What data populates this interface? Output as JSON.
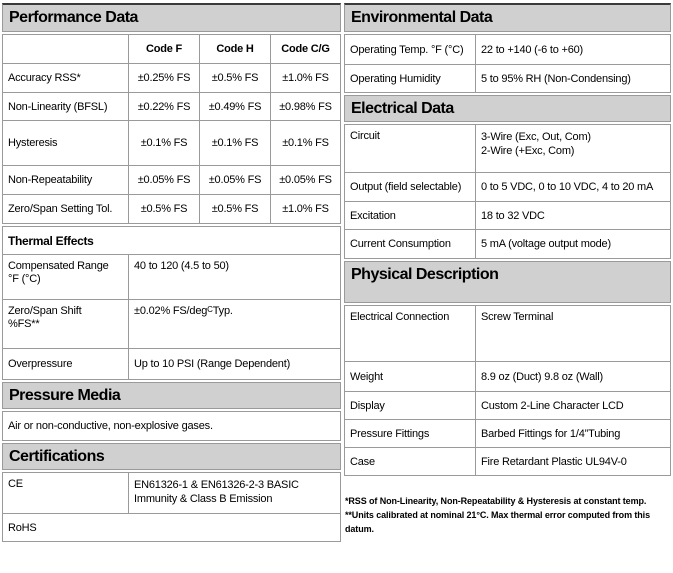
{
  "colors": {
    "header_bg": "#d0d0d0",
    "border": "#9a9a9a",
    "top_rule": "#3a3a3a",
    "text": "#000000"
  },
  "performance": {
    "title": "Performance Data",
    "col_headers": [
      "Code F",
      "Code H",
      "Code C/G"
    ],
    "rows": [
      {
        "label": "Accuracy RSS*",
        "values": [
          "±0.25% FS",
          "±0.5% FS",
          "±1.0% FS"
        ]
      },
      {
        "label": "Non-Linearity (BFSL)",
        "values": [
          "±0.22% FS",
          "±0.49% FS",
          "±0.98% FS"
        ]
      },
      {
        "label": "Hysteresis",
        "values": [
          "±0.1% FS",
          "±0.1% FS",
          "±0.1% FS"
        ]
      },
      {
        "label": "Non-Repeatability",
        "values": [
          "±0.05% FS",
          "±0.05% FS",
          "±0.05% FS"
        ]
      },
      {
        "label": "Zero/Span Setting Tol.",
        "values": [
          "±0.5% FS",
          "±0.5% FS",
          "±1.0% FS"
        ]
      }
    ],
    "thermal": {
      "title": "Thermal Effects",
      "rows": [
        {
          "label_line1": "Compensated Range",
          "label_line2": "°F (°C)",
          "value": "40 to 120 (4.5 to 50)"
        },
        {
          "label_line1": "Zero/Span Shift",
          "label_line2": "%FS**",
          "value": "±0.02% FS/deg",
          "value_sup": "C",
          "value_tail": " Typ."
        },
        {
          "label": "Overpressure",
          "value": "Up to 10 PSI (Range Dependent)"
        }
      ]
    }
  },
  "pressure_media": {
    "title": "Pressure Media",
    "text": "Air or non-conductive, non-explosive gases."
  },
  "certifications": {
    "title": "Certifications",
    "rows": [
      {
        "label": "CE",
        "value": "EN61326-1 & EN61326-2-3 BASIC Immunity & Class B Emission"
      },
      {
        "label": "RoHS",
        "value": ""
      }
    ]
  },
  "environmental": {
    "title": "Environmental Data",
    "rows": [
      {
        "label": "Operating Temp. °F (°C)",
        "value": "22 to +140 (-6 to +60)"
      },
      {
        "label": "Operating Humidity",
        "value": "5 to 95% RH (Non-Condensing)"
      }
    ]
  },
  "electrical": {
    "title": "Electrical Data",
    "rows": [
      {
        "label": "Circuit",
        "value_line1": "3-Wire (Exc, Out, Com)",
        "value_line2": "2-Wire (+Exc, Com)"
      },
      {
        "label": "Output (field selectable)",
        "value": "0 to 5 VDC, 0 to 10 VDC, 4 to 20 mA"
      },
      {
        "label": "Excitation",
        "value": "18 to 32 VDC"
      },
      {
        "label": "Current Consumption",
        "value": "5 mA (voltage output mode)"
      }
    ]
  },
  "physical": {
    "title": "Physical Description",
    "rows": [
      {
        "label": "Electrical Connection",
        "value": "Screw Terminal"
      },
      {
        "label": "Weight",
        "value": "8.9 oz (Duct) 9.8 oz (Wall)"
      },
      {
        "label": "Display",
        "value": "Custom 2-Line Character LCD"
      },
      {
        "label": "Pressure Fittings",
        "value": "Barbed Fittings for 1/4”Tubing"
      },
      {
        "label": "Case",
        "value": "Fire Retardant Plastic UL94V-0"
      }
    ]
  },
  "footnotes": [
    "*RSS of Non-Linearity, Non-Repeatability & Hysteresis at constant temp.",
    "**Units calibrated at nominal 21°C. Max thermal error computed from this datum."
  ]
}
